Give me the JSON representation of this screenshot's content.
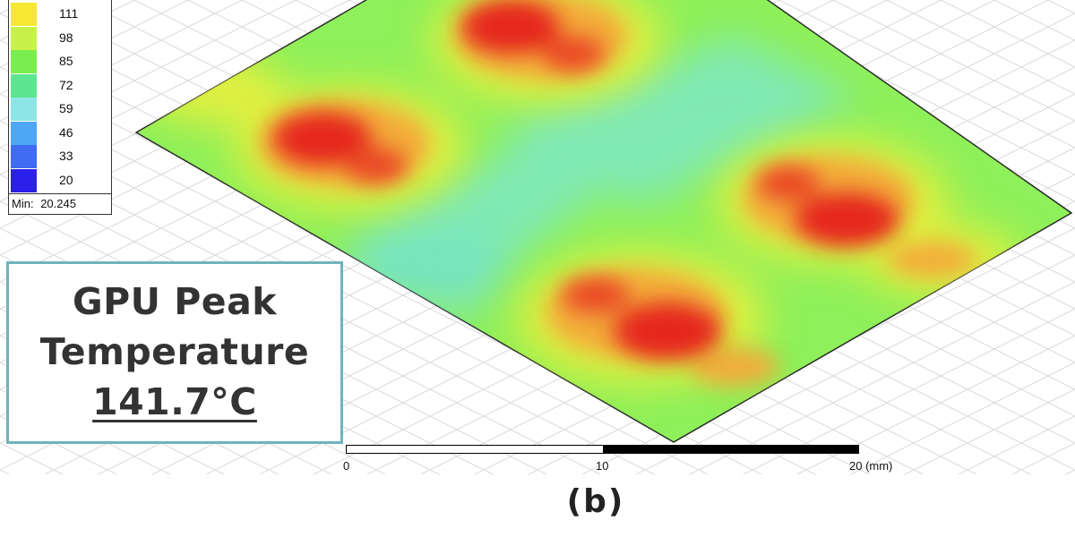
{
  "legend": {
    "values": [
      "111",
      "98",
      "85",
      "72",
      "59",
      "46",
      "33",
      "20"
    ],
    "colors": [
      "#f6e832",
      "#c8f24a",
      "#79ef4f",
      "#5ee58f",
      "#8ee5e6",
      "#4ea6f5",
      "#3f6cf2",
      "#2b20e9"
    ],
    "min_label": "Min:",
    "min_value": "20.245"
  },
  "callout": {
    "line1": "GPU Peak",
    "line2": "Temperature",
    "value": "141.7°C"
  },
  "scale_bar": {
    "labels": [
      "0",
      "10",
      "20 (mm)"
    ]
  },
  "caption": "(b)",
  "colors": {
    "hot": "#e5281b",
    "warm": "#f4a93a",
    "mid": "#e9ef3c",
    "base": "#8ef05a",
    "cool": "#7ee8c4",
    "callout_border": "#6fb3bc"
  }
}
